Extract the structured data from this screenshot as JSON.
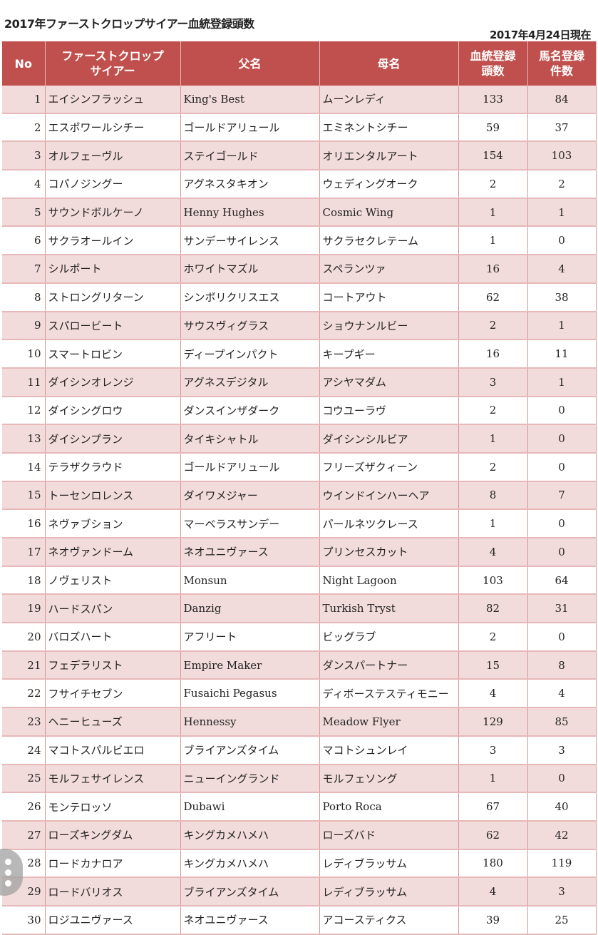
{
  "title": "2017年ファーストクロップサイアー血統登録頭数",
  "as_of": "2017年4月24日現在",
  "headers": {
    "no": "No",
    "sire_line1": "ファーストクロップ",
    "sire_line2": "サイアー",
    "father": "父名",
    "mother": "母名",
    "reg_line1": "血統登録",
    "reg_line2": "頭数",
    "name_line1": "馬名登録",
    "name_line2": "件数"
  },
  "rows": [
    [
      "1",
      "エイシンフラッシュ",
      "King's Best",
      "ムーンレディ",
      "133",
      "84"
    ],
    [
      "2",
      "エスポワールシチー",
      "ゴールドアリュール",
      "エミネントシチー",
      "59",
      "37"
    ],
    [
      "3",
      "オルフェーヴル",
      "ステイゴールド",
      "オリエンタルアート",
      "154",
      "103"
    ],
    [
      "4",
      "コパノジングー",
      "アグネスタキオン",
      "ウェディングオーク",
      "2",
      "2"
    ],
    [
      "5",
      "サウンドボルケーノ",
      "Henny Hughes",
      "Cosmic Wing",
      "1",
      "1"
    ],
    [
      "6",
      "サクラオールイン",
      "サンデーサイレンス",
      "サクラセクレテーム",
      "1",
      "0"
    ],
    [
      "7",
      "シルポート",
      "ホワイトマズル",
      "スペランツァ",
      "16",
      "4"
    ],
    [
      "8",
      "ストロングリターン",
      "シンボリクリスエス",
      "コートアウト",
      "62",
      "38"
    ],
    [
      "9",
      "スパロービート",
      "サウスヴィグラス",
      "ショウナンルビー",
      "2",
      "1"
    ],
    [
      "10",
      "スマートロビン",
      "ディープインパクト",
      "キープギー",
      "16",
      "11"
    ],
    [
      "11",
      "ダイシンオレンジ",
      "アグネスデジタル",
      "アシヤマダム",
      "3",
      "1"
    ],
    [
      "12",
      "ダイシングロウ",
      "ダンスインザダーク",
      "コウユーラヴ",
      "2",
      "0"
    ],
    [
      "13",
      "ダイシンプラン",
      "タイキシャトル",
      "ダイシンシルビア",
      "1",
      "0"
    ],
    [
      "14",
      "テラザクラウド",
      "ゴールドアリュール",
      "フリーズザクィーン",
      "2",
      "0"
    ],
    [
      "15",
      "トーセンロレンス",
      "ダイワメジャー",
      "ウインドインハーヘア",
      "8",
      "7"
    ],
    [
      "16",
      "ネヴァブション",
      "マーベラスサンデー",
      "パールネツクレース",
      "1",
      "0"
    ],
    [
      "17",
      "ネオヴァンドーム",
      "ネオユニヴァース",
      "プリンセスカット",
      "4",
      "0"
    ],
    [
      "18",
      "ノヴェリスト",
      "Monsun",
      "Night Lagoon",
      "103",
      "64"
    ],
    [
      "19",
      "ハードスパン",
      "Danzig",
      "Turkish Tryst",
      "82",
      "31"
    ],
    [
      "20",
      "バロズハート",
      "アフリート",
      "ビッグラブ",
      "2",
      "0"
    ],
    [
      "21",
      "フェデラリスト",
      "Empire Maker",
      "ダンスパートナー",
      "15",
      "8"
    ],
    [
      "22",
      "フサイチセブン",
      "Fusaichi Pegasus",
      "ディボーステスティモニー",
      "4",
      "4"
    ],
    [
      "23",
      "ヘニーヒューズ",
      "Hennessy",
      "Meadow Flyer",
      "129",
      "85"
    ],
    [
      "24",
      "マコトスパルビエロ",
      "ブライアンズタイム",
      "マコトシュンレイ",
      "3",
      "3"
    ],
    [
      "25",
      "モルフェサイレンス",
      "ニューイングランド",
      "モルフェソング",
      "1",
      "0"
    ],
    [
      "26",
      "モンテロッソ",
      "Dubawi",
      "Porto Roca",
      "67",
      "40"
    ],
    [
      "27",
      "ローズキングダム",
      "キングカメハメハ",
      "ローズバド",
      "62",
      "42"
    ],
    [
      "28",
      "ロードカナロア",
      "キングカメハメハ",
      "レディブラッサム",
      "180",
      "119"
    ],
    [
      "29",
      "ロードバリオス",
      "ブライアンズタイム",
      "レディブラッサム",
      "4",
      "3"
    ],
    [
      "30",
      "ロジユニヴァース",
      "ネオユニヴァース",
      "アコースティクス",
      "39",
      "25"
    ]
  ],
  "colors": {
    "header_bg": "#c0504d",
    "odd_row_bg": "#f2dcdb"
  },
  "floating_button_icon": "more-vertical-icon"
}
